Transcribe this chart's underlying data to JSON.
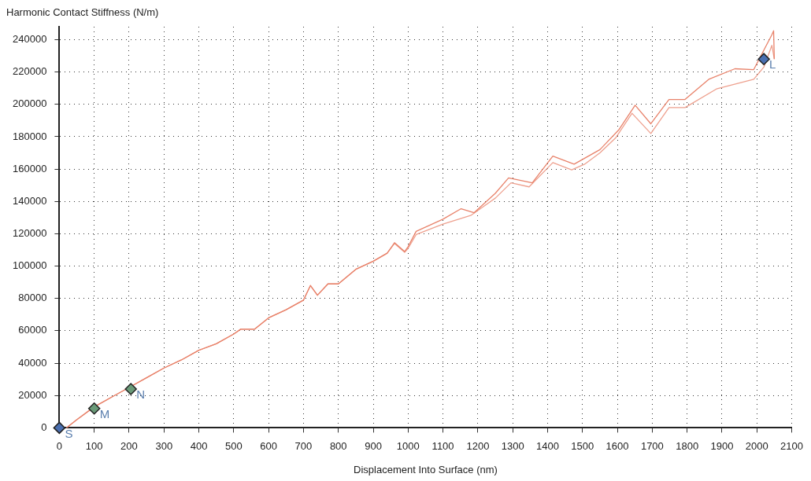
{
  "chart_data": {
    "type": "line",
    "ylabel": "Harmonic Contact Stiffness (N/m)",
    "xlabel": "Displacement Into Surface (nm)",
    "xlim": [
      0,
      2100
    ],
    "xticks": [
      0,
      100,
      200,
      300,
      400,
      500,
      600,
      700,
      800,
      900,
      1000,
      1100,
      1200,
      1300,
      1400,
      1500,
      1600,
      1700,
      1800,
      1900,
      2000,
      2100
    ],
    "ylim": [
      0,
      248000
    ],
    "yticks": [
      0,
      20000,
      40000,
      60000,
      80000,
      100000,
      120000,
      140000,
      160000,
      180000,
      200000,
      220000,
      240000
    ],
    "grid": true,
    "legend": false,
    "marker": "none",
    "line_style": "solid",
    "series": [
      {
        "type": "line",
        "color": "#e8826a",
        "x": [
          20,
          50,
          100,
          150,
          200,
          250,
          300,
          350,
          400,
          450,
          500,
          520,
          560,
          600,
          650,
          700,
          720,
          740,
          770,
          800,
          850,
          900,
          940,
          961,
          990,
          1000,
          1023,
          1100,
          1152,
          1189,
          1250,
          1288,
          1356,
          1415,
          1476,
          1550,
          1605,
          1651,
          1696,
          1748,
          1794,
          1862,
          1937,
          1991,
          2020,
          2043,
          2048,
          2050
        ],
        "values": [
          0,
          5000,
          13000,
          19000,
          25000,
          31000,
          37000,
          42000,
          48000,
          52000,
          58000,
          61000,
          61000,
          68000,
          73000,
          79000,
          88000,
          82000,
          89000,
          89000,
          98000,
          103000,
          108000,
          114500,
          109000,
          112000,
          121500,
          129000,
          135500,
          133000,
          145000,
          154500,
          151500,
          168000,
          163000,
          172000,
          184500,
          199500,
          188000,
          203000,
          203000,
          215500,
          222000,
          221500,
          null,
          243000,
          245500,
          228000
        ]
      },
      {
        "type": "line",
        "color": "#eea08e",
        "x": [
          20,
          50,
          100,
          150,
          200,
          250,
          300,
          350,
          400,
          450,
          500,
          520,
          560,
          600,
          650,
          700,
          720,
          740,
          770,
          800,
          850,
          900,
          940,
          961,
          990,
          1000,
          1023,
          1100,
          1181,
          1250,
          1295,
          1347,
          1415,
          1469,
          1506,
          1550,
          1596,
          1642,
          1696,
          1748,
          1794,
          1884,
          1991,
          2020,
          2043,
          2050
        ],
        "values": [
          0,
          5000,
          13000,
          19000,
          25000,
          31000,
          37000,
          42000,
          48000,
          52000,
          58000,
          61000,
          61000,
          68000,
          73000,
          79000,
          88000,
          82000,
          89000,
          89000,
          98000,
          103000,
          108000,
          114000,
          108500,
          111000,
          119500,
          126000,
          131500,
          142000,
          151500,
          149000,
          164000,
          159500,
          163000,
          170000,
          179500,
          194500,
          182000,
          198000,
          198000,
          209500,
          215500,
          223000,
          236500,
          228000
        ]
      },
      {
        "type": "scatter",
        "marker": "diamond",
        "color": "#4a6fb0",
        "x": [
          0,
          2020
        ],
        "values": [
          0,
          228000
        ]
      },
      {
        "type": "scatter",
        "marker": "diamond",
        "color": "#6a9a78",
        "x": [
          100,
          205
        ],
        "values": [
          12000,
          24000
        ]
      }
    ],
    "annotations": [
      {
        "text": "S",
        "x": 0,
        "y": 0
      },
      {
        "text": "M",
        "x": 100,
        "y": 12000
      },
      {
        "text": "N",
        "x": 205,
        "y": 24000
      },
      {
        "text": "L",
        "x": 2020,
        "y": 228000
      }
    ]
  }
}
